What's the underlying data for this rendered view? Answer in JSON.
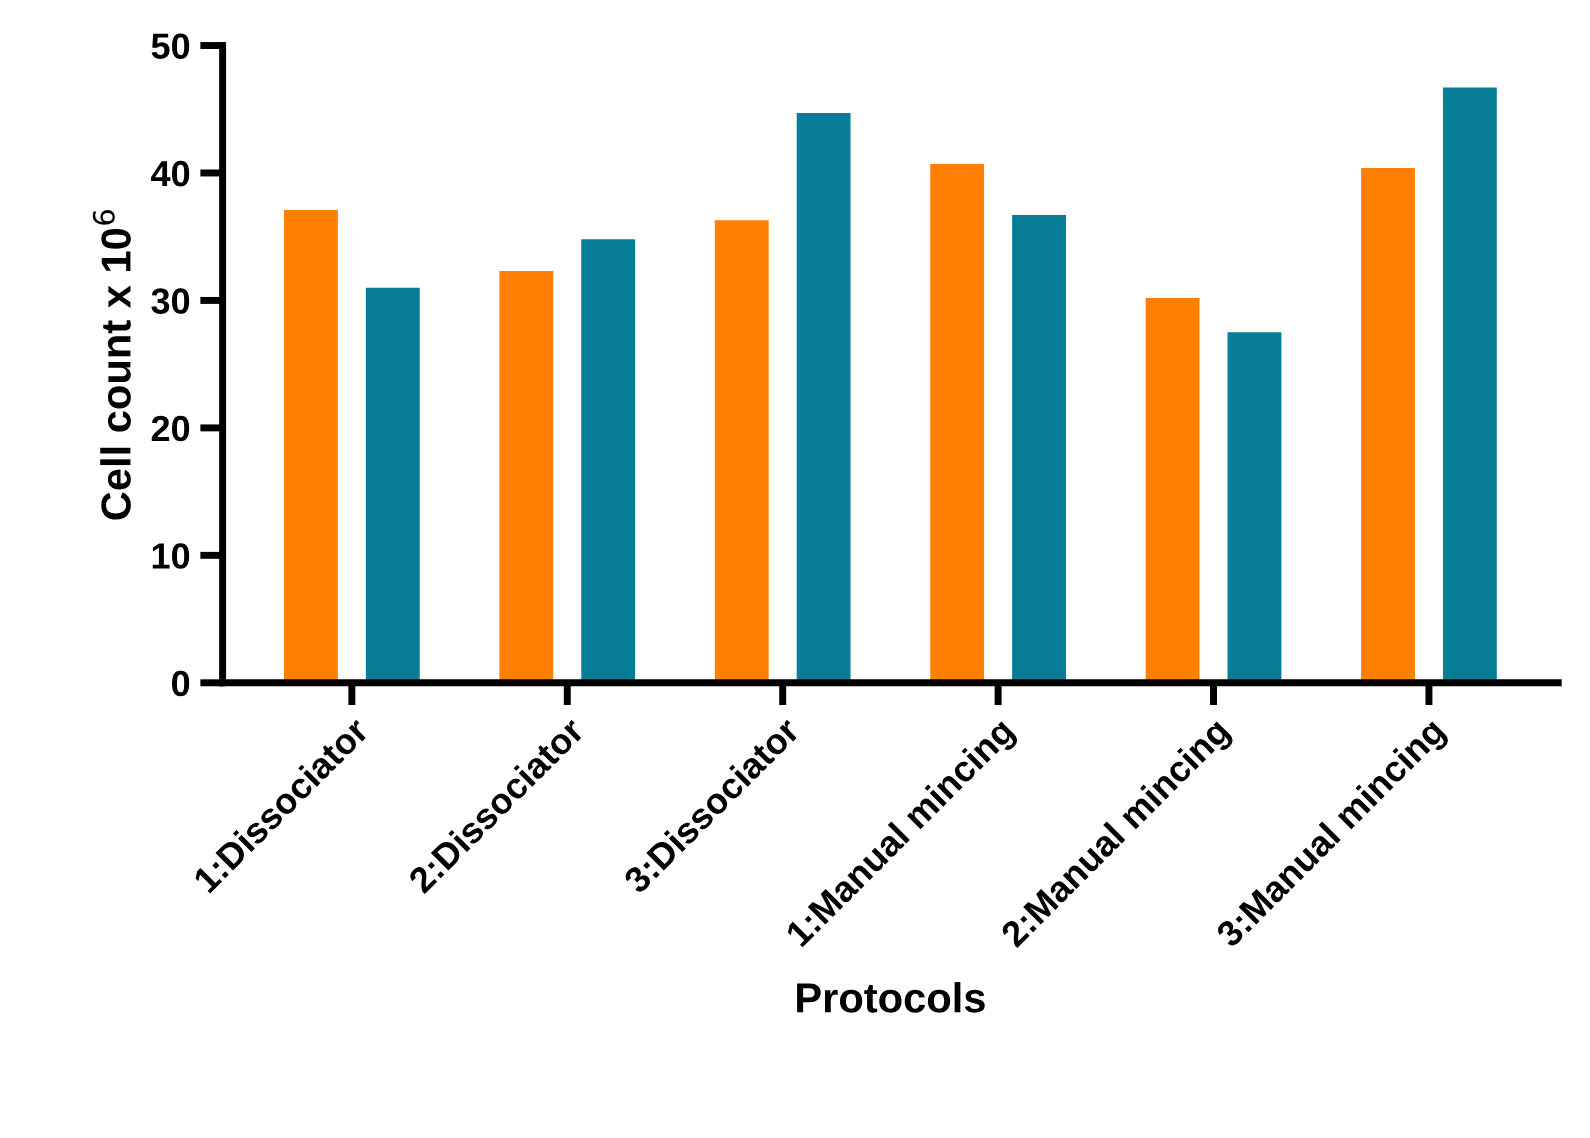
{
  "chart_data": {
    "type": "bar",
    "xlabel": "Protocols",
    "ylabel": "Cell count x 10$^{6}$",
    "categories": [
      "1:Dissociator",
      "2:Dissociator",
      "3:Dissociator",
      "1:Manual mincing",
      "2:Manual mincing",
      "3:Manual mincing"
    ],
    "series": [
      {
        "color": "#ff7f00",
        "values": [
          37.1,
          32.3,
          36.3,
          40.7,
          30.2,
          40.4
        ]
      },
      {
        "color": "#087e96",
        "values": [
          31.0,
          34.8,
          44.7,
          36.7,
          27.5,
          46.7
        ]
      }
    ],
    "ylim": [
      0,
      50
    ],
    "yticks": [
      0,
      10,
      20,
      30,
      40,
      50
    ],
    "grid": false
  }
}
